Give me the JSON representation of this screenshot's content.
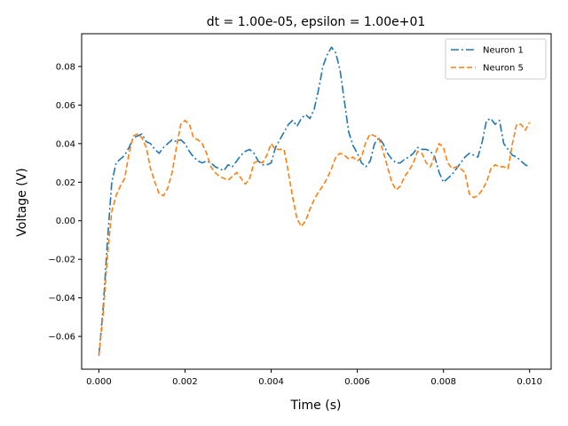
{
  "chart_data": {
    "type": "line",
    "title": "dt = 1.00e-05, epsilon = 1.00e+01",
    "xlabel": "Time (s)",
    "ylabel": "Voltage (V)",
    "xlim": [
      -0.0004,
      0.0105
    ],
    "ylim": [
      -0.077,
      0.097
    ],
    "xticks": [
      0.0,
      0.002,
      0.004,
      0.006,
      0.008,
      0.01
    ],
    "xtick_labels": [
      "0.000",
      "0.002",
      "0.004",
      "0.006",
      "0.008",
      "0.010"
    ],
    "yticks": [
      -0.06,
      -0.04,
      -0.02,
      0.0,
      0.02,
      0.04,
      0.06,
      0.08
    ],
    "ytick_labels": [
      "−0.06",
      "−0.04",
      "−0.02",
      "0.00",
      "0.02",
      "0.04",
      "0.06",
      "0.08"
    ],
    "grid": false,
    "legend_position": "top-right",
    "series": [
      {
        "name": "Neuron 1",
        "color": "#1f77b4",
        "style": "dashdot",
        "x": [
          0.0,
          0.0001,
          0.0002,
          0.0003,
          0.0004,
          0.0005,
          0.0006,
          0.0007,
          0.0008,
          0.0009,
          0.001,
          0.0011,
          0.0012,
          0.0013,
          0.0014,
          0.0015,
          0.0016,
          0.0017,
          0.0018,
          0.0019,
          0.002,
          0.0021,
          0.0022,
          0.0023,
          0.0024,
          0.0025,
          0.0026,
          0.0027,
          0.0028,
          0.0029,
          0.003,
          0.0031,
          0.0032,
          0.0033,
          0.0034,
          0.0035,
          0.0036,
          0.0037,
          0.0038,
          0.0039,
          0.004,
          0.0041,
          0.0042,
          0.0043,
          0.0044,
          0.0045,
          0.0046,
          0.0047,
          0.0048,
          0.0049,
          0.005,
          0.0051,
          0.0052,
          0.0053,
          0.0054,
          0.0055,
          0.0056,
          0.0057,
          0.0058,
          0.0059,
          0.006,
          0.0061,
          0.0062,
          0.0063,
          0.0064,
          0.0065,
          0.0066,
          0.0067,
          0.0068,
          0.0069,
          0.007,
          0.0071,
          0.0072,
          0.0073,
          0.0074,
          0.0075,
          0.0076,
          0.0077,
          0.0078,
          0.0079,
          0.008,
          0.0081,
          0.0082,
          0.0083,
          0.0084,
          0.0085,
          0.0086,
          0.0087,
          0.0088,
          0.0089,
          0.009,
          0.0091,
          0.0092,
          0.0093,
          0.0094,
          0.0095,
          0.0096,
          0.0097,
          0.0098,
          0.0099,
          0.01
        ],
        "y": [
          -0.07,
          -0.045,
          -0.01,
          0.02,
          0.03,
          0.032,
          0.034,
          0.038,
          0.043,
          0.044,
          0.045,
          0.041,
          0.04,
          0.037,
          0.035,
          0.038,
          0.04,
          0.042,
          0.041,
          0.042,
          0.04,
          0.036,
          0.033,
          0.031,
          0.03,
          0.031,
          0.03,
          0.028,
          0.027,
          0.026,
          0.029,
          0.028,
          0.031,
          0.034,
          0.036,
          0.037,
          0.035,
          0.031,
          0.029,
          0.029,
          0.03,
          0.038,
          0.042,
          0.046,
          0.05,
          0.052,
          0.049,
          0.053,
          0.055,
          0.053,
          0.058,
          0.068,
          0.08,
          0.086,
          0.09,
          0.087,
          0.078,
          0.062,
          0.046,
          0.039,
          0.035,
          0.03,
          0.028,
          0.031,
          0.04,
          0.043,
          0.04,
          0.035,
          0.032,
          0.03,
          0.03,
          0.032,
          0.033,
          0.035,
          0.038,
          0.037,
          0.037,
          0.036,
          0.033,
          0.025,
          0.02,
          0.022,
          0.024,
          0.027,
          0.03,
          0.033,
          0.035,
          0.034,
          0.033,
          0.041,
          0.052,
          0.053,
          0.05,
          0.052,
          0.04,
          0.037,
          0.034,
          0.033,
          0.031,
          0.029,
          0.028
        ]
      },
      {
        "name": "Neuron 5",
        "color": "#ff7f0e",
        "style": "dashed",
        "x": [
          0.0,
          0.0001,
          0.0002,
          0.0003,
          0.0004,
          0.0005,
          0.0006,
          0.0007,
          0.0008,
          0.0009,
          0.001,
          0.0011,
          0.0012,
          0.0013,
          0.0014,
          0.0015,
          0.0016,
          0.0017,
          0.0018,
          0.0019,
          0.002,
          0.0021,
          0.0022,
          0.0023,
          0.0024,
          0.0025,
          0.0026,
          0.0027,
          0.0028,
          0.0029,
          0.003,
          0.0031,
          0.0032,
          0.0033,
          0.0034,
          0.0035,
          0.0036,
          0.0037,
          0.0038,
          0.0039,
          0.004,
          0.0041,
          0.0042,
          0.0043,
          0.0044,
          0.0045,
          0.0046,
          0.0047,
          0.0048,
          0.0049,
          0.005,
          0.0051,
          0.0052,
          0.0053,
          0.0054,
          0.0055,
          0.0056,
          0.0057,
          0.0058,
          0.0059,
          0.006,
          0.0061,
          0.0062,
          0.0063,
          0.0064,
          0.0065,
          0.0066,
          0.0067,
          0.0068,
          0.0069,
          0.007,
          0.0071,
          0.0072,
          0.0073,
          0.0074,
          0.0075,
          0.0076,
          0.0077,
          0.0078,
          0.0079,
          0.008,
          0.0081,
          0.0082,
          0.0083,
          0.0084,
          0.0085,
          0.0086,
          0.0087,
          0.0088,
          0.0089,
          0.009,
          0.0091,
          0.0092,
          0.0093,
          0.0094,
          0.0095,
          0.0096,
          0.0097,
          0.0098,
          0.0099,
          0.01
        ],
        "y": [
          -0.07,
          -0.048,
          -0.018,
          0.005,
          0.013,
          0.018,
          0.022,
          0.035,
          0.044,
          0.045,
          0.043,
          0.038,
          0.027,
          0.02,
          0.014,
          0.013,
          0.017,
          0.025,
          0.038,
          0.05,
          0.052,
          0.05,
          0.043,
          0.042,
          0.04,
          0.035,
          0.028,
          0.025,
          0.023,
          0.022,
          0.021,
          0.023,
          0.025,
          0.022,
          0.019,
          0.022,
          0.03,
          0.031,
          0.03,
          0.034,
          0.04,
          0.037,
          0.037,
          0.037,
          0.025,
          0.012,
          0.001,
          -0.003,
          0.0,
          0.006,
          0.011,
          0.015,
          0.018,
          0.022,
          0.027,
          0.033,
          0.035,
          0.034,
          0.032,
          0.033,
          0.031,
          0.033,
          0.041,
          0.045,
          0.044,
          0.043,
          0.036,
          0.028,
          0.02,
          0.016,
          0.018,
          0.023,
          0.026,
          0.03,
          0.036,
          0.035,
          0.03,
          0.028,
          0.034,
          0.04,
          0.038,
          0.03,
          0.027,
          0.028,
          0.027,
          0.025,
          0.014,
          0.012,
          0.013,
          0.016,
          0.02,
          0.027,
          0.029,
          0.028,
          0.028,
          0.027,
          0.04,
          0.05,
          0.05,
          0.047,
          0.051
        ]
      }
    ]
  }
}
